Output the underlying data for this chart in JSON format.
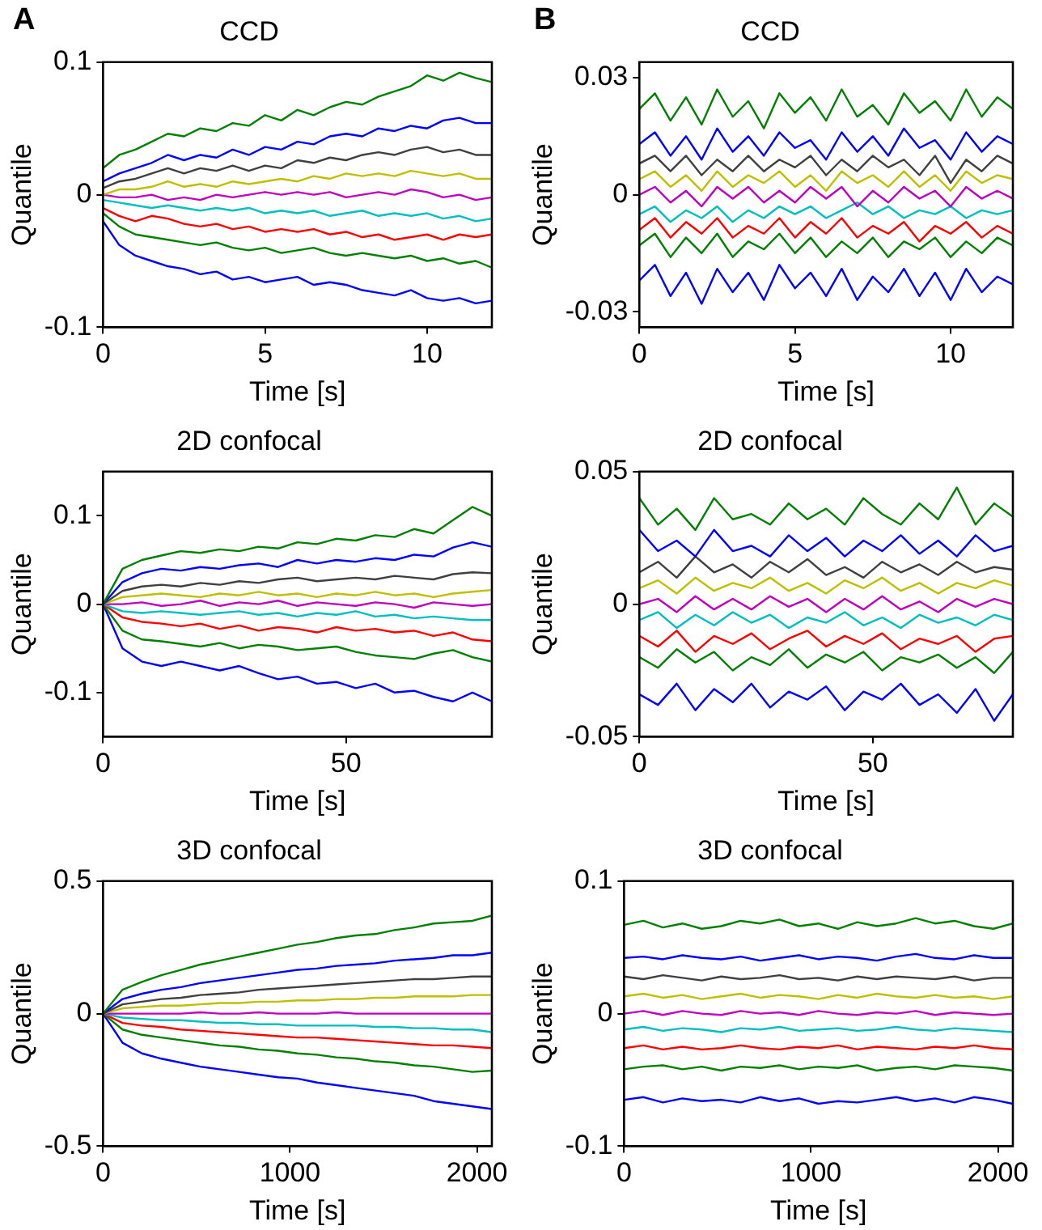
{
  "chart_data": [
    {
      "type": "line",
      "title": "CCD",
      "xlabel": "Time [s]",
      "ylabel": "Quantile",
      "annotations": [
        "A"
      ],
      "xlim": [
        0,
        12
      ],
      "xticks": [
        0,
        5,
        10
      ],
      "ylim": [
        -0.1,
        0.1
      ],
      "yticks": [
        -0.1,
        0,
        0.1
      ],
      "x": [
        0,
        0.5,
        1,
        1.5,
        2,
        2.5,
        3,
        3.5,
        4,
        4.5,
        5,
        5.5,
        6,
        6.5,
        7,
        7.5,
        8,
        8.5,
        9,
        9.5,
        10,
        10.5,
        11,
        11.5,
        12
      ],
      "series": [
        {
          "color": "#008000",
          "values": [
            0.02,
            0.03,
            0.034,
            0.04,
            0.046,
            0.044,
            0.05,
            0.048,
            0.054,
            0.052,
            0.06,
            0.056,
            0.064,
            0.06,
            0.066,
            0.07,
            0.068,
            0.074,
            0.078,
            0.082,
            0.09,
            0.086,
            0.092,
            0.088,
            0.085
          ]
        },
        {
          "color": "#0000ff",
          "values": [
            0.01,
            0.016,
            0.02,
            0.024,
            0.03,
            0.026,
            0.03,
            0.028,
            0.034,
            0.03,
            0.036,
            0.034,
            0.04,
            0.038,
            0.044,
            0.046,
            0.044,
            0.05,
            0.048,
            0.052,
            0.05,
            0.056,
            0.058,
            0.054,
            0.054
          ]
        },
        {
          "color": "#404040",
          "values": [
            0.005,
            0.01,
            0.012,
            0.016,
            0.02,
            0.016,
            0.02,
            0.018,
            0.022,
            0.018,
            0.022,
            0.02,
            0.026,
            0.024,
            0.028,
            0.026,
            0.03,
            0.032,
            0.03,
            0.034,
            0.036,
            0.032,
            0.034,
            0.03,
            0.03
          ]
        },
        {
          "color": "#bfbf00",
          "values": [
            0,
            0.004,
            0.004,
            0.006,
            0.01,
            0.006,
            0.008,
            0.006,
            0.01,
            0.008,
            0.01,
            0.012,
            0.01,
            0.014,
            0.012,
            0.016,
            0.014,
            0.016,
            0.014,
            0.018,
            0.016,
            0.014,
            0.016,
            0.012,
            0.012
          ]
        },
        {
          "color": "#bf00bf",
          "values": [
            0,
            -0.002,
            -0.002,
            0,
            -0.004,
            -0.002,
            -0.004,
            0,
            -0.002,
            0,
            0.002,
            0,
            0.002,
            0,
            0.002,
            -0.002,
            0,
            0.002,
            0,
            0.004,
            0.002,
            -0.002,
            0,
            -0.004,
            -0.002
          ]
        },
        {
          "color": "#00bfbf",
          "values": [
            -0.004,
            -0.006,
            -0.008,
            -0.01,
            -0.008,
            -0.01,
            -0.012,
            -0.01,
            -0.012,
            -0.01,
            -0.014,
            -0.012,
            -0.014,
            -0.012,
            -0.016,
            -0.014,
            -0.012,
            -0.016,
            -0.014,
            -0.016,
            -0.014,
            -0.018,
            -0.016,
            -0.02,
            -0.018
          ]
        },
        {
          "color": "#ff0000",
          "values": [
            -0.01,
            -0.016,
            -0.02,
            -0.016,
            -0.018,
            -0.022,
            -0.024,
            -0.022,
            -0.026,
            -0.024,
            -0.028,
            -0.026,
            -0.028,
            -0.026,
            -0.03,
            -0.028,
            -0.032,
            -0.03,
            -0.034,
            -0.032,
            -0.03,
            -0.034,
            -0.03,
            -0.032,
            -0.03
          ]
        },
        {
          "color": "#008000",
          "values": [
            -0.014,
            -0.024,
            -0.03,
            -0.032,
            -0.034,
            -0.036,
            -0.038,
            -0.036,
            -0.04,
            -0.042,
            -0.04,
            -0.044,
            -0.042,
            -0.04,
            -0.044,
            -0.046,
            -0.044,
            -0.046,
            -0.048,
            -0.046,
            -0.05,
            -0.048,
            -0.052,
            -0.05,
            -0.055
          ]
        },
        {
          "color": "#0000ff",
          "values": [
            -0.02,
            -0.038,
            -0.046,
            -0.05,
            -0.054,
            -0.056,
            -0.06,
            -0.058,
            -0.064,
            -0.062,
            -0.066,
            -0.064,
            -0.062,
            -0.068,
            -0.066,
            -0.068,
            -0.072,
            -0.074,
            -0.076,
            -0.072,
            -0.078,
            -0.08,
            -0.078,
            -0.082,
            -0.08
          ]
        }
      ]
    },
    {
      "type": "line",
      "title": "CCD",
      "xlabel": "Time [s]",
      "ylabel": "Quantile",
      "annotations": [
        "B"
      ],
      "xlim": [
        0,
        12
      ],
      "xticks": [
        0,
        5,
        10
      ],
      "ylim": [
        -0.034,
        0.034
      ],
      "yticks": [
        -0.03,
        0,
        0.03
      ],
      "x": [
        0,
        0.5,
        1,
        1.5,
        2,
        2.5,
        3,
        3.5,
        4,
        4.5,
        5,
        5.5,
        6,
        6.5,
        7,
        7.5,
        8,
        8.5,
        9,
        9.5,
        10,
        10.5,
        11,
        11.5,
        12
      ],
      "series": [
        {
          "color": "#008000",
          "values": [
            0.022,
            0.026,
            0.019,
            0.025,
            0.018,
            0.027,
            0.02,
            0.024,
            0.017,
            0.026,
            0.021,
            0.025,
            0.019,
            0.027,
            0.02,
            0.023,
            0.018,
            0.026,
            0.021,
            0.024,
            0.019,
            0.027,
            0.02,
            0.025,
            0.022
          ]
        },
        {
          "color": "#0000ff",
          "values": [
            0.013,
            0.016,
            0.01,
            0.015,
            0.009,
            0.017,
            0.011,
            0.015,
            0.01,
            0.016,
            0.012,
            0.014,
            0.009,
            0.016,
            0.011,
            0.015,
            0.01,
            0.017,
            0.012,
            0.014,
            0.009,
            0.016,
            0.011,
            0.015,
            0.013
          ]
        },
        {
          "color": "#404040",
          "values": [
            0.008,
            0.01,
            0.006,
            0.01,
            0.005,
            0.009,
            0.006,
            0.01,
            0.006,
            0.009,
            0.007,
            0.01,
            0.005,
            0.009,
            0.006,
            0.01,
            0.007,
            0.009,
            0.005,
            0.01,
            0.003,
            0.009,
            0.006,
            0.01,
            0.008
          ]
        },
        {
          "color": "#bfbf00",
          "values": [
            0.004,
            0.006,
            0.002,
            0.005,
            0.001,
            0.006,
            0.002,
            0.005,
            0.003,
            0.006,
            0.002,
            0.005,
            0.001,
            0.006,
            0.003,
            0.005,
            0.002,
            0.006,
            0.002,
            0.005,
            0.001,
            0.006,
            0.003,
            0.005,
            0.004
          ]
        },
        {
          "color": "#bf00bf",
          "values": [
            0,
            0.002,
            -0.002,
            0.001,
            -0.003,
            0.002,
            -0.001,
            0.002,
            -0.002,
            0.001,
            -0.002,
            0.002,
            -0.001,
            0.002,
            -0.003,
            0.001,
            -0.002,
            0.002,
            -0.001,
            0.001,
            -0.003,
            0.002,
            -0.001,
            0.001,
            -0.001
          ]
        },
        {
          "color": "#00bfbf",
          "values": [
            -0.005,
            -0.003,
            -0.007,
            -0.004,
            -0.006,
            -0.003,
            -0.007,
            -0.004,
            -0.006,
            -0.003,
            -0.005,
            -0.003,
            -0.006,
            -0.004,
            -0.002,
            -0.005,
            -0.003,
            -0.006,
            -0.004,
            -0.005,
            -0.003,
            -0.006,
            -0.004,
            -0.005,
            -0.004
          ]
        },
        {
          "color": "#ff0000",
          "values": [
            -0.009,
            -0.006,
            -0.011,
            -0.007,
            -0.01,
            -0.006,
            -0.011,
            -0.008,
            -0.01,
            -0.006,
            -0.011,
            -0.007,
            -0.01,
            -0.006,
            -0.011,
            -0.008,
            -0.01,
            -0.007,
            -0.012,
            -0.008,
            -0.01,
            -0.007,
            -0.011,
            -0.008,
            -0.01
          ]
        },
        {
          "color": "#008000",
          "values": [
            -0.013,
            -0.01,
            -0.016,
            -0.011,
            -0.015,
            -0.01,
            -0.016,
            -0.012,
            -0.014,
            -0.01,
            -0.015,
            -0.011,
            -0.016,
            -0.012,
            -0.015,
            -0.011,
            -0.016,
            -0.012,
            -0.014,
            -0.011,
            -0.016,
            -0.012,
            -0.015,
            -0.011,
            -0.013
          ]
        },
        {
          "color": "#0000ff",
          "values": [
            -0.022,
            -0.018,
            -0.026,
            -0.02,
            -0.028,
            -0.019,
            -0.025,
            -0.02,
            -0.027,
            -0.018,
            -0.024,
            -0.02,
            -0.026,
            -0.019,
            -0.027,
            -0.021,
            -0.025,
            -0.019,
            -0.026,
            -0.02,
            -0.027,
            -0.019,
            -0.025,
            -0.021,
            -0.023
          ]
        }
      ]
    },
    {
      "type": "line",
      "title": "2D confocal",
      "xlabel": "Time [s]",
      "ylabel": "Quantile",
      "xlim": [
        0,
        80
      ],
      "xticks": [
        0,
        50
      ],
      "ylim": [
        -0.15,
        0.15
      ],
      "yticks": [
        -0.1,
        0,
        0.1
      ],
      "x": [
        0,
        4,
        8,
        12,
        16,
        20,
        24,
        28,
        32,
        36,
        40,
        44,
        48,
        52,
        56,
        60,
        64,
        68,
        72,
        76,
        80
      ],
      "series": [
        {
          "color": "#008000",
          "values": [
            0,
            0.04,
            0.05,
            0.055,
            0.06,
            0.058,
            0.062,
            0.06,
            0.065,
            0.063,
            0.07,
            0.068,
            0.074,
            0.072,
            0.078,
            0.076,
            0.085,
            0.08,
            0.095,
            0.11,
            0.1
          ]
        },
        {
          "color": "#0000ff",
          "values": [
            0,
            0.025,
            0.035,
            0.04,
            0.038,
            0.042,
            0.04,
            0.044,
            0.046,
            0.042,
            0.05,
            0.046,
            0.05,
            0.048,
            0.052,
            0.05,
            0.056,
            0.054,
            0.064,
            0.07,
            0.065
          ]
        },
        {
          "color": "#404040",
          "values": [
            0,
            0.015,
            0.02,
            0.022,
            0.02,
            0.024,
            0.022,
            0.026,
            0.024,
            0.028,
            0.03,
            0.026,
            0.028,
            0.03,
            0.028,
            0.032,
            0.03,
            0.028,
            0.034,
            0.036,
            0.035
          ]
        },
        {
          "color": "#bfbf00",
          "values": [
            0,
            0.008,
            0.01,
            0.012,
            0.01,
            0.008,
            0.012,
            0.01,
            0.014,
            0.01,
            0.012,
            0.008,
            0.012,
            0.01,
            0.014,
            0.01,
            0.012,
            0.008,
            0.012,
            0.014,
            0.016
          ]
        },
        {
          "color": "#bf00bf",
          "values": [
            0,
            0,
            0.002,
            -0.002,
            0,
            0.004,
            -0.002,
            0.002,
            0,
            0.004,
            -0.002,
            0.002,
            0,
            -0.002,
            0.002,
            0,
            -0.004,
            0.002,
            0,
            -0.002,
            0
          ]
        },
        {
          "color": "#00bfbf",
          "values": [
            0,
            -0.008,
            -0.01,
            -0.008,
            -0.01,
            -0.012,
            -0.01,
            -0.008,
            -0.012,
            -0.01,
            -0.014,
            -0.01,
            -0.012,
            -0.008,
            -0.014,
            -0.012,
            -0.016,
            -0.014,
            -0.016,
            -0.018,
            -0.018
          ]
        },
        {
          "color": "#ff0000",
          "values": [
            0,
            -0.015,
            -0.02,
            -0.022,
            -0.025,
            -0.022,
            -0.028,
            -0.024,
            -0.03,
            -0.026,
            -0.028,
            -0.032,
            -0.026,
            -0.03,
            -0.028,
            -0.032,
            -0.03,
            -0.036,
            -0.032,
            -0.04,
            -0.042
          ]
        },
        {
          "color": "#008000",
          "values": [
            0,
            -0.03,
            -0.04,
            -0.042,
            -0.045,
            -0.048,
            -0.044,
            -0.05,
            -0.046,
            -0.048,
            -0.052,
            -0.05,
            -0.048,
            -0.054,
            -0.058,
            -0.06,
            -0.062,
            -0.056,
            -0.052,
            -0.06,
            -0.065
          ]
        },
        {
          "color": "#0000ff",
          "values": [
            0,
            -0.05,
            -0.065,
            -0.07,
            -0.065,
            -0.07,
            -0.075,
            -0.07,
            -0.078,
            -0.085,
            -0.082,
            -0.09,
            -0.088,
            -0.095,
            -0.09,
            -0.1,
            -0.098,
            -0.105,
            -0.11,
            -0.1,
            -0.11
          ]
        }
      ]
    },
    {
      "type": "line",
      "title": "2D confocal",
      "xlabel": "Time [s]",
      "ylabel": "Quantile",
      "xlim": [
        0,
        80
      ],
      "xticks": [
        0,
        50
      ],
      "ylim": [
        -0.05,
        0.05
      ],
      "yticks": [
        -0.05,
        0,
        0.05
      ],
      "x": [
        0,
        4,
        8,
        12,
        16,
        20,
        24,
        28,
        32,
        36,
        40,
        44,
        48,
        52,
        56,
        60,
        64,
        68,
        72,
        76,
        80
      ],
      "series": [
        {
          "color": "#008000",
          "values": [
            0.04,
            0.03,
            0.036,
            0.028,
            0.04,
            0.032,
            0.034,
            0.03,
            0.038,
            0.032,
            0.036,
            0.03,
            0.04,
            0.034,
            0.03,
            0.038,
            0.032,
            0.044,
            0.03,
            0.038,
            0.033
          ]
        },
        {
          "color": "#0000ff",
          "values": [
            0.028,
            0.02,
            0.024,
            0.018,
            0.028,
            0.02,
            0.022,
            0.018,
            0.026,
            0.02,
            0.025,
            0.018,
            0.024,
            0.02,
            0.026,
            0.019,
            0.024,
            0.018,
            0.026,
            0.02,
            0.022
          ]
        },
        {
          "color": "#404040",
          "values": [
            0.012,
            0.016,
            0.01,
            0.018,
            0.012,
            0.015,
            0.01,
            0.016,
            0.012,
            0.017,
            0.011,
            0.014,
            0.01,
            0.016,
            0.012,
            0.015,
            0.011,
            0.016,
            0.012,
            0.014,
            0.013
          ]
        },
        {
          "color": "#bfbf00",
          "values": [
            0.006,
            0.009,
            0.004,
            0.01,
            0.005,
            0.008,
            0.006,
            0.01,
            0.005,
            0.008,
            0.004,
            0.009,
            0.006,
            0.01,
            0.005,
            0.008,
            0.004,
            0.008,
            0.006,
            0.009,
            0.007
          ]
        },
        {
          "color": "#bf00bf",
          "values": [
            0,
            0.002,
            -0.003,
            0.003,
            -0.002,
            0.002,
            -0.002,
            0.003,
            -0.001,
            0.002,
            -0.003,
            0.002,
            -0.002,
            0.003,
            -0.002,
            0.001,
            -0.003,
            0.002,
            -0.001,
            0.002,
            0
          ]
        },
        {
          "color": "#00bfbf",
          "values": [
            -0.006,
            -0.003,
            -0.009,
            -0.004,
            -0.008,
            -0.003,
            -0.007,
            -0.004,
            -0.009,
            -0.005,
            -0.007,
            -0.003,
            -0.008,
            -0.005,
            -0.009,
            -0.004,
            -0.007,
            -0.005,
            -0.008,
            -0.004,
            -0.006
          ]
        },
        {
          "color": "#ff0000",
          "values": [
            -0.012,
            -0.016,
            -0.01,
            -0.018,
            -0.012,
            -0.015,
            -0.011,
            -0.017,
            -0.013,
            -0.01,
            -0.016,
            -0.012,
            -0.015,
            -0.011,
            -0.017,
            -0.013,
            -0.015,
            -0.012,
            -0.018,
            -0.013,
            -0.012
          ]
        },
        {
          "color": "#008000",
          "values": [
            -0.02,
            -0.024,
            -0.017,
            -0.022,
            -0.018,
            -0.025,
            -0.02,
            -0.023,
            -0.017,
            -0.024,
            -0.019,
            -0.022,
            -0.018,
            -0.025,
            -0.02,
            -0.022,
            -0.019,
            -0.024,
            -0.02,
            -0.026,
            -0.018
          ]
        },
        {
          "color": "#0000ff",
          "values": [
            -0.034,
            -0.038,
            -0.03,
            -0.04,
            -0.032,
            -0.037,
            -0.03,
            -0.039,
            -0.033,
            -0.036,
            -0.031,
            -0.04,
            -0.033,
            -0.036,
            -0.03,
            -0.038,
            -0.034,
            -0.041,
            -0.032,
            -0.044,
            -0.034
          ]
        }
      ]
    },
    {
      "type": "line",
      "title": "3D confocal",
      "xlabel": "Time [s]",
      "ylabel": "Quantile",
      "xlim": [
        0,
        2080
      ],
      "xticks": [
        0,
        1000,
        2000
      ],
      "ylim": [
        -0.5,
        0.5
      ],
      "yticks": [
        -0.5,
        0,
        0.5
      ],
      "x": [
        0,
        104,
        208,
        312,
        416,
        520,
        624,
        728,
        832,
        936,
        1040,
        1144,
        1248,
        1352,
        1456,
        1560,
        1664,
        1768,
        1872,
        1976,
        2080
      ],
      "series": [
        {
          "color": "#008000",
          "values": [
            0,
            0.09,
            0.12,
            0.145,
            0.165,
            0.185,
            0.2,
            0.215,
            0.23,
            0.245,
            0.26,
            0.27,
            0.285,
            0.295,
            0.3,
            0.315,
            0.325,
            0.34,
            0.345,
            0.35,
            0.37
          ]
        },
        {
          "color": "#0000ff",
          "values": [
            0,
            0.055,
            0.075,
            0.09,
            0.1,
            0.115,
            0.125,
            0.135,
            0.145,
            0.155,
            0.165,
            0.17,
            0.18,
            0.185,
            0.19,
            0.2,
            0.205,
            0.21,
            0.22,
            0.22,
            0.23
          ]
        },
        {
          "color": "#404040",
          "values": [
            0,
            0.035,
            0.045,
            0.055,
            0.06,
            0.07,
            0.075,
            0.08,
            0.09,
            0.095,
            0.1,
            0.105,
            0.11,
            0.115,
            0.12,
            0.125,
            0.13,
            0.13,
            0.135,
            0.14,
            0.14
          ]
        },
        {
          "color": "#bfbf00",
          "values": [
            0,
            0.02,
            0.025,
            0.03,
            0.03,
            0.035,
            0.04,
            0.04,
            0.045,
            0.045,
            0.05,
            0.05,
            0.055,
            0.055,
            0.06,
            0.06,
            0.065,
            0.065,
            0.065,
            0.07,
            0.07
          ]
        },
        {
          "color": "#bf00bf",
          "values": [
            0,
            0,
            0,
            0,
            0,
            0.005,
            0,
            0,
            0.005,
            0,
            0,
            0,
            0.005,
            0,
            0,
            0,
            0,
            0,
            0,
            0,
            0
          ]
        },
        {
          "color": "#00bfbf",
          "values": [
            0,
            -0.015,
            -0.02,
            -0.025,
            -0.025,
            -0.03,
            -0.035,
            -0.035,
            -0.04,
            -0.04,
            -0.045,
            -0.045,
            -0.045,
            -0.045,
            -0.05,
            -0.05,
            -0.055,
            -0.055,
            -0.06,
            -0.06,
            -0.07
          ]
        },
        {
          "color": "#ff0000",
          "values": [
            0,
            -0.035,
            -0.045,
            -0.05,
            -0.06,
            -0.065,
            -0.07,
            -0.075,
            -0.08,
            -0.085,
            -0.09,
            -0.09,
            -0.095,
            -0.1,
            -0.105,
            -0.11,
            -0.115,
            -0.12,
            -0.12,
            -0.125,
            -0.13
          ]
        },
        {
          "color": "#008000",
          "values": [
            0,
            -0.06,
            -0.08,
            -0.09,
            -0.1,
            -0.11,
            -0.12,
            -0.125,
            -0.135,
            -0.14,
            -0.15,
            -0.155,
            -0.165,
            -0.17,
            -0.18,
            -0.185,
            -0.195,
            -0.2,
            -0.21,
            -0.22,
            -0.215
          ]
        },
        {
          "color": "#0000ff",
          "values": [
            0,
            -0.11,
            -0.15,
            -0.17,
            -0.185,
            -0.2,
            -0.21,
            -0.22,
            -0.23,
            -0.24,
            -0.245,
            -0.26,
            -0.27,
            -0.28,
            -0.29,
            -0.3,
            -0.31,
            -0.33,
            -0.34,
            -0.35,
            -0.36
          ]
        }
      ]
    },
    {
      "type": "line",
      "title": "3D confocal",
      "xlabel": "Time [s]",
      "ylabel": "Quantile",
      "xlim": [
        0,
        2080
      ],
      "xticks": [
        0,
        1000,
        2000
      ],
      "ylim": [
        -0.1,
        0.1
      ],
      "yticks": [
        -0.1,
        0,
        0.1
      ],
      "x": [
        0,
        104,
        208,
        312,
        416,
        520,
        624,
        728,
        832,
        936,
        1040,
        1144,
        1248,
        1352,
        1456,
        1560,
        1664,
        1768,
        1872,
        1976,
        2080
      ],
      "series": [
        {
          "color": "#008000",
          "values": [
            0.067,
            0.07,
            0.065,
            0.068,
            0.064,
            0.066,
            0.07,
            0.068,
            0.071,
            0.066,
            0.068,
            0.064,
            0.069,
            0.066,
            0.068,
            0.072,
            0.068,
            0.07,
            0.066,
            0.064,
            0.068
          ]
        },
        {
          "color": "#0000ff",
          "values": [
            0.042,
            0.043,
            0.041,
            0.044,
            0.042,
            0.041,
            0.043,
            0.04,
            0.042,
            0.044,
            0.041,
            0.043,
            0.042,
            0.04,
            0.043,
            0.045,
            0.042,
            0.041,
            0.044,
            0.042,
            0.042
          ]
        },
        {
          "color": "#404040",
          "values": [
            0.028,
            0.026,
            0.029,
            0.027,
            0.025,
            0.028,
            0.026,
            0.027,
            0.029,
            0.026,
            0.027,
            0.025,
            0.028,
            0.026,
            0.028,
            0.027,
            0.026,
            0.028,
            0.025,
            0.027,
            0.027
          ]
        },
        {
          "color": "#bfbf00",
          "values": [
            0.013,
            0.015,
            0.012,
            0.014,
            0.011,
            0.013,
            0.015,
            0.012,
            0.014,
            0.013,
            0.011,
            0.014,
            0.012,
            0.015,
            0.013,
            0.012,
            0.014,
            0.012,
            0.013,
            0.011,
            0.013
          ]
        },
        {
          "color": "#bf00bf",
          "values": [
            0,
            0.002,
            -0.001,
            0.002,
            0,
            -0.001,
            0.002,
            0,
            0.001,
            -0.001,
            0.002,
            0,
            -0.001,
            0.001,
            0,
            0.002,
            -0.001,
            0.001,
            0,
            -0.001,
            0
          ]
        },
        {
          "color": "#00bfbf",
          "values": [
            -0.012,
            -0.01,
            -0.013,
            -0.011,
            -0.012,
            -0.014,
            -0.011,
            -0.012,
            -0.01,
            -0.013,
            -0.012,
            -0.011,
            -0.013,
            -0.012,
            -0.01,
            -0.012,
            -0.013,
            -0.011,
            -0.012,
            -0.013,
            -0.014
          ]
        },
        {
          "color": "#ff0000",
          "values": [
            -0.026,
            -0.024,
            -0.027,
            -0.025,
            -0.027,
            -0.026,
            -0.024,
            -0.026,
            -0.027,
            -0.025,
            -0.026,
            -0.024,
            -0.027,
            -0.025,
            -0.026,
            -0.027,
            -0.025,
            -0.026,
            -0.024,
            -0.026,
            -0.027
          ]
        },
        {
          "color": "#008000",
          "values": [
            -0.042,
            -0.04,
            -0.039,
            -0.042,
            -0.04,
            -0.043,
            -0.04,
            -0.041,
            -0.039,
            -0.042,
            -0.04,
            -0.041,
            -0.039,
            -0.043,
            -0.041,
            -0.04,
            -0.042,
            -0.039,
            -0.04,
            -0.041,
            -0.043
          ]
        },
        {
          "color": "#0000ff",
          "values": [
            -0.065,
            -0.063,
            -0.067,
            -0.064,
            -0.066,
            -0.065,
            -0.067,
            -0.063,
            -0.066,
            -0.064,
            -0.068,
            -0.066,
            -0.067,
            -0.065,
            -0.063,
            -0.066,
            -0.064,
            -0.067,
            -0.063,
            -0.065,
            -0.068
          ]
        }
      ]
    }
  ]
}
